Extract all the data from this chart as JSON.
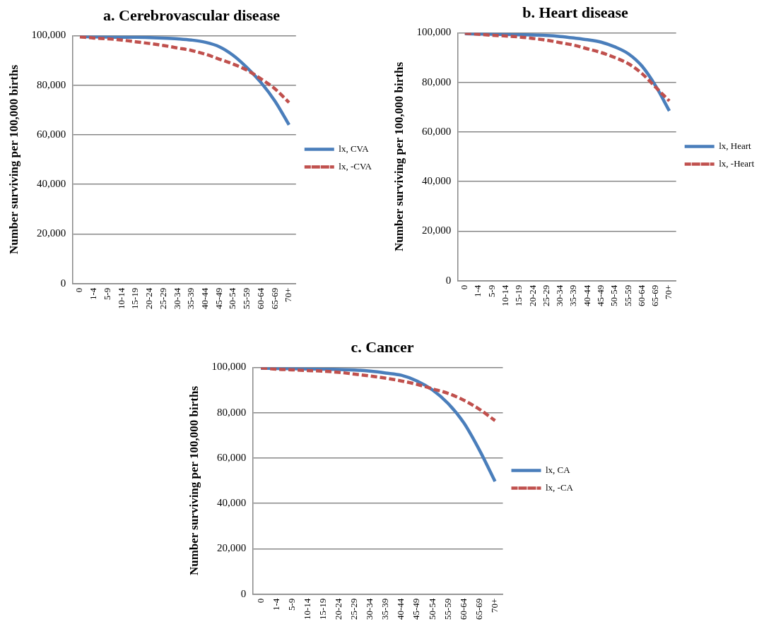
{
  "chart_data": [
    {
      "type": "line",
      "title": "a. Cerebrovascular disease",
      "ylabel": "Number surviving per 100,000 births",
      "categories": [
        "0",
        "1-4",
        "5-9",
        "10-14",
        "15-19",
        "20-24",
        "25-29",
        "30-34",
        "35-39",
        "40-44",
        "45-49",
        "50-54",
        "55-59",
        "60-64",
        "65-69",
        "70+"
      ],
      "series": [
        {
          "name": "lx, CVA",
          "color": "#4a7ebb",
          "line_style": "solid",
          "values": [
            99600,
            99500,
            99400,
            99300,
            99300,
            99200,
            99000,
            98700,
            98200,
            97300,
            95500,
            92000,
            87000,
            81000,
            73500,
            64000
          ]
        },
        {
          "name": "lx, -CVA",
          "color": "#c0504d",
          "line_style": "dashed",
          "values": [
            99500,
            99000,
            98700,
            98200,
            97500,
            96800,
            96000,
            95000,
            94000,
            92500,
            90500,
            88500,
            86000,
            82500,
            78500,
            73000
          ]
        }
      ],
      "ylim": [
        0,
        100000
      ],
      "yticks": [
        {
          "value": 0,
          "label": "0"
        },
        {
          "value": 20000,
          "label": "20,000"
        },
        {
          "value": 40000,
          "label": "40,000"
        },
        {
          "value": 60000,
          "label": "60,000"
        },
        {
          "value": 80000,
          "label": "80,000"
        },
        {
          "value": 100000,
          "label": "100,000"
        }
      ],
      "grid": "y",
      "legend": "right",
      "marker": "none"
    },
    {
      "type": "line",
      "title": "b. Heart disease",
      "ylabel": "Number surviving per 100,000 births",
      "categories": [
        "0",
        "1-4",
        "5-9",
        "10-14",
        "15-19",
        "20-24",
        "25-29",
        "30-34",
        "35-39",
        "40-44",
        "45-49",
        "50-54",
        "55-59",
        "60-64",
        "65-69",
        "70+"
      ],
      "series": [
        {
          "name": "lx, Heart",
          "color": "#4a7ebb",
          "line_style": "solid",
          "values": [
            99600,
            99500,
            99400,
            99300,
            99200,
            99100,
            98900,
            98500,
            97900,
            97200,
            96200,
            94300,
            91500,
            86500,
            78500,
            68500
          ]
        },
        {
          "name": "lx, -Heart",
          "color": "#c0504d",
          "line_style": "dashed",
          "values": [
            99800,
            99400,
            99000,
            98700,
            98300,
            97700,
            97000,
            96000,
            95000,
            93500,
            92000,
            90000,
            87500,
            83500,
            78000,
            72500
          ]
        }
      ],
      "ylim": [
        0,
        100000
      ],
      "yticks": [
        {
          "value": 0,
          "label": "0"
        },
        {
          "value": 20000,
          "label": "20,000"
        },
        {
          "value": 40000,
          "label": "40,000"
        },
        {
          "value": 60000,
          "label": "60,000"
        },
        {
          "value": 80000,
          "label": "80,000"
        },
        {
          "value": 100000,
          "label": "100,000"
        }
      ],
      "grid": "y",
      "legend": "right",
      "marker": "none"
    },
    {
      "type": "line",
      "title": "c. Cancer",
      "ylabel": "Number surviving per 100,000 births",
      "categories": [
        "0",
        "1-4",
        "5-9",
        "10-14",
        "15-19",
        "20-24",
        "25-29",
        "30-34",
        "35-39",
        "40-44",
        "45-49",
        "50-54",
        "55-59",
        "60-64",
        "65-69",
        "70+"
      ],
      "series": [
        {
          "name": "lx, CA",
          "color": "#4a7ebb",
          "line_style": "solid",
          "values": [
            99600,
            99500,
            99400,
            99300,
            99200,
            99000,
            98800,
            98300,
            97500,
            96500,
            94000,
            90000,
            84000,
            75500,
            63500,
            49700
          ]
        },
        {
          "name": "lx, -CA",
          "color": "#c0504d",
          "line_style": "dashed",
          "values": [
            99800,
            99200,
            98900,
            98600,
            98300,
            97800,
            97000,
            96200,
            95200,
            94000,
            92500,
            90500,
            88500,
            85500,
            81500,
            76500
          ]
        }
      ],
      "ylim": [
        0,
        100000
      ],
      "yticks": [
        {
          "value": 0,
          "label": "0"
        },
        {
          "value": 20000,
          "label": "20,000"
        },
        {
          "value": 40000,
          "label": "40,000"
        },
        {
          "value": 60000,
          "label": "60,000"
        },
        {
          "value": 80000,
          "label": "80,000"
        },
        {
          "value": 100000,
          "label": "100,000"
        }
      ],
      "grid": "y",
      "legend": "right",
      "marker": "none"
    }
  ]
}
